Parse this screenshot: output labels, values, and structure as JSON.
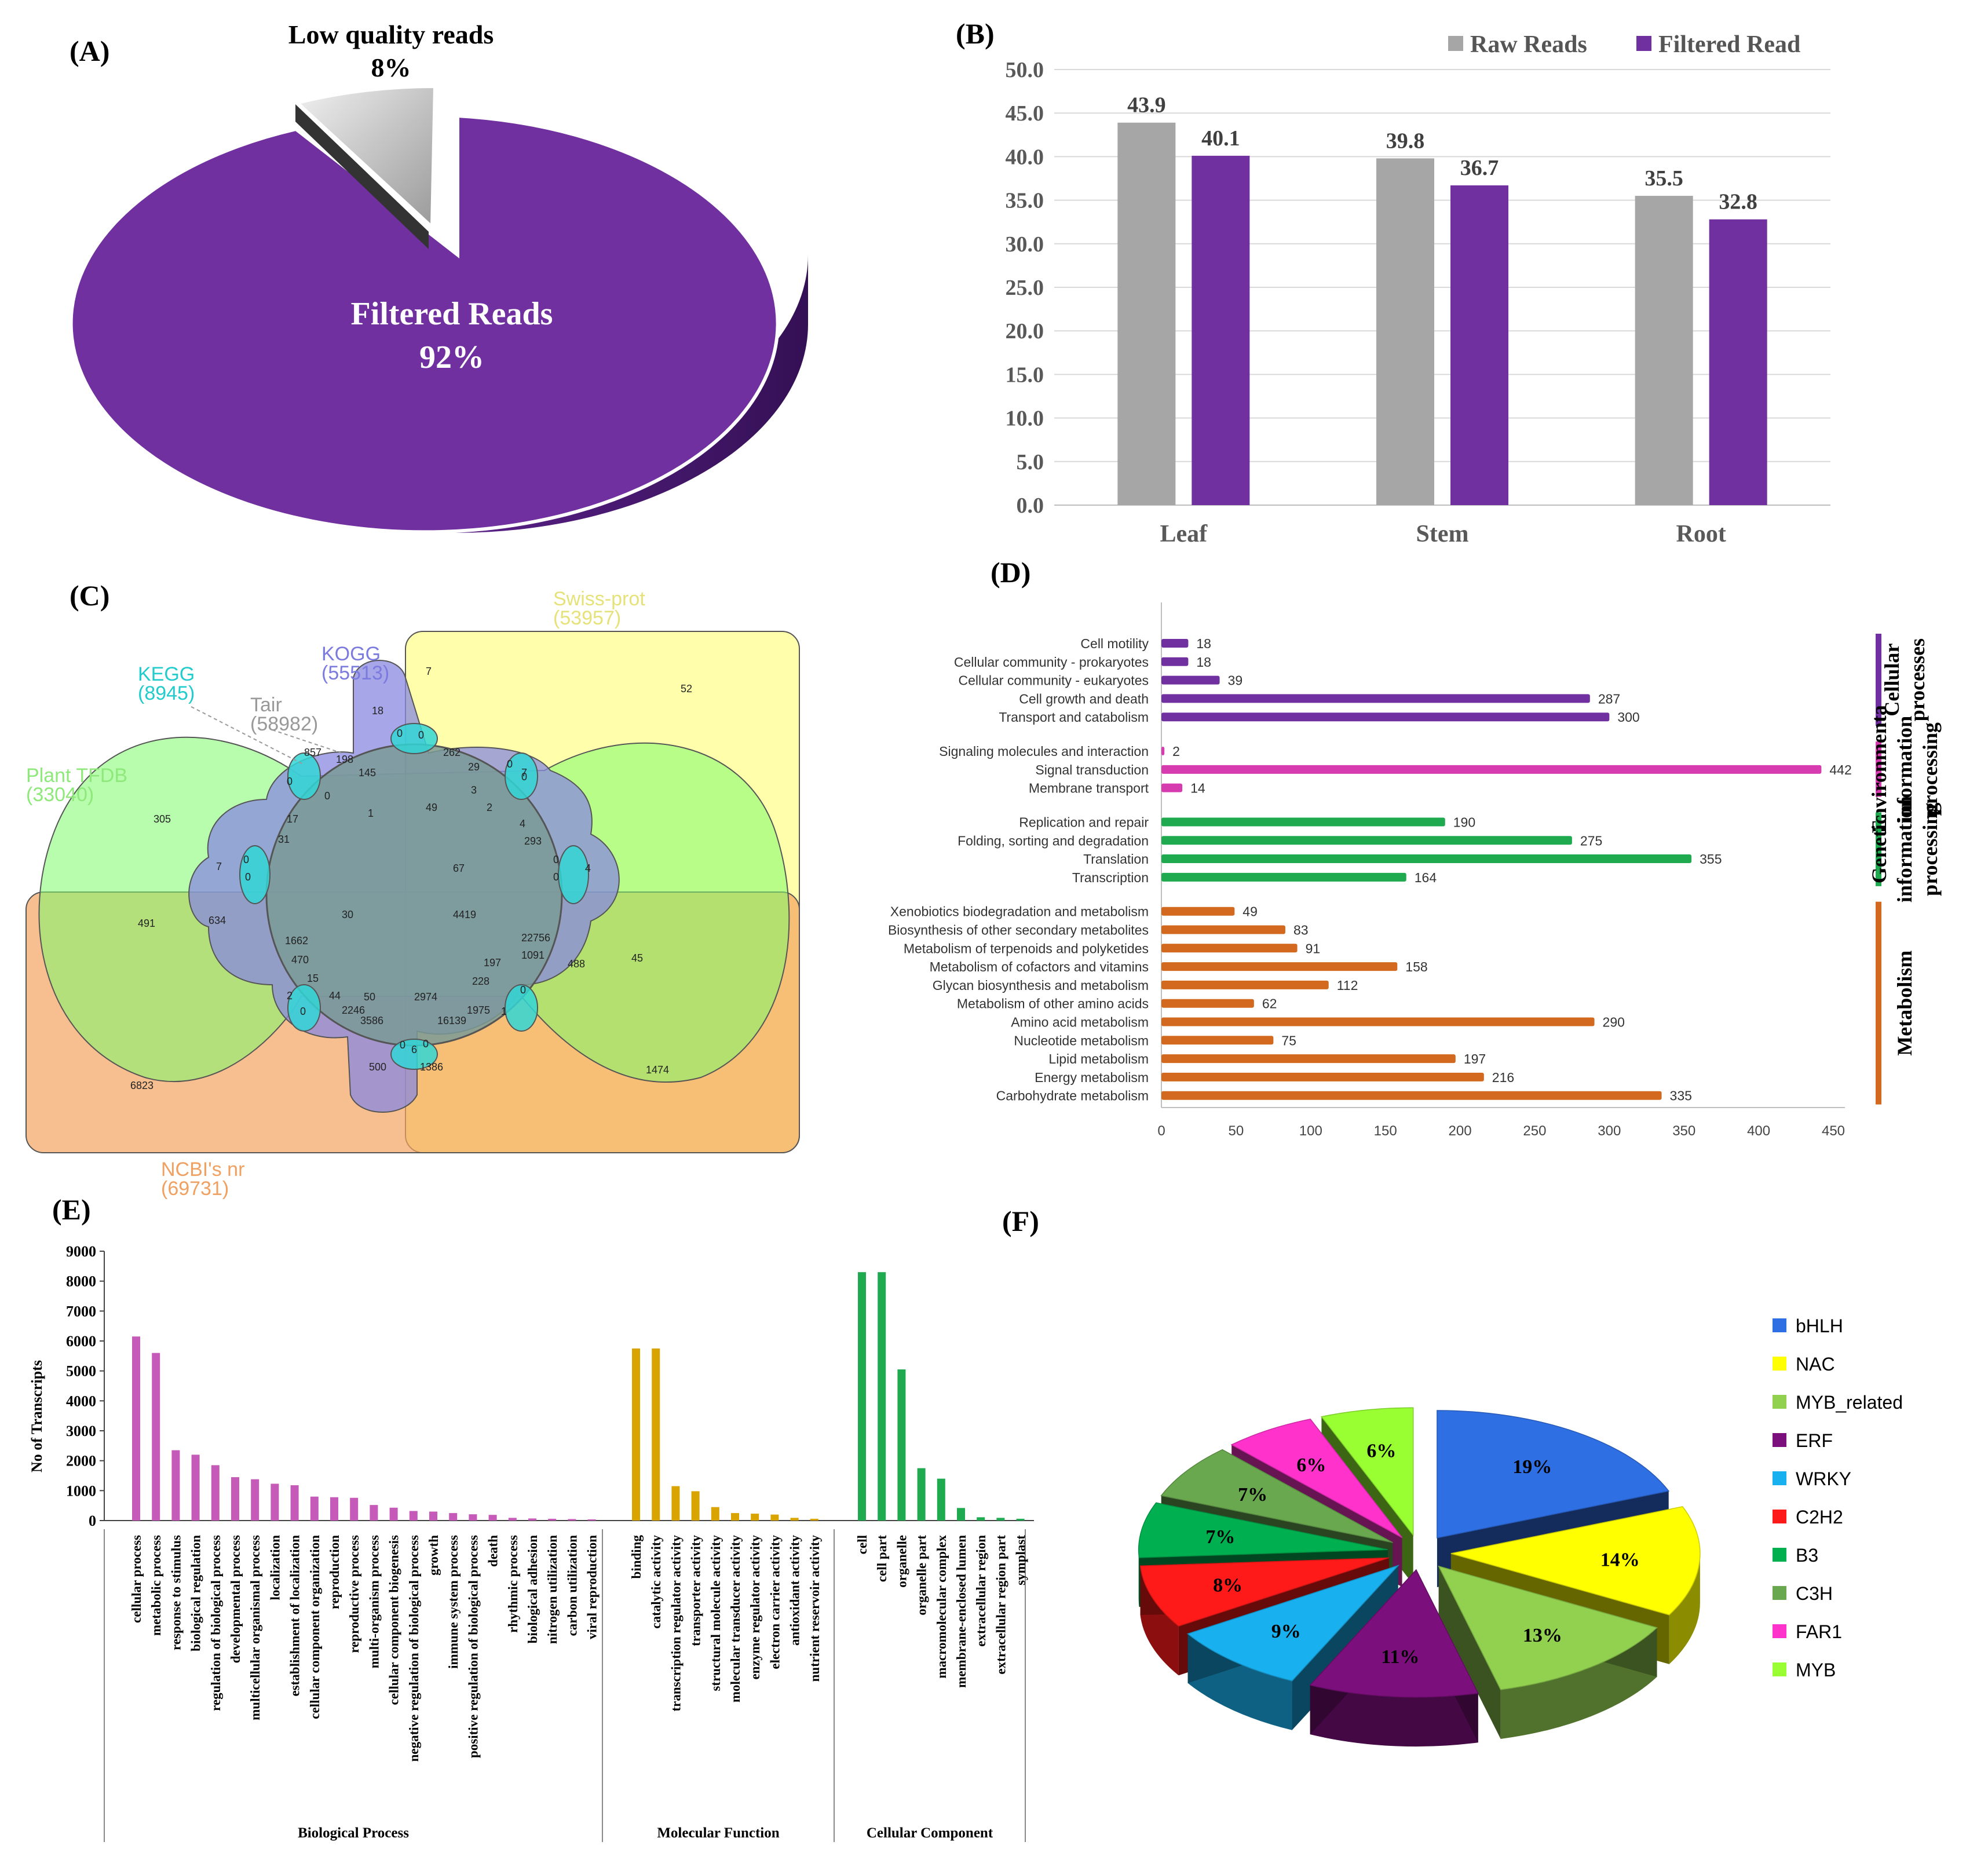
{
  "colors": {
    "purple": "#7030a0",
    "grey": "#a6a6a6",
    "cell": "#7030a0",
    "env": "#d63cb0",
    "gen": "#1faa4f",
    "met": "#d2691e",
    "bp": "#c55ab8",
    "mf": "#d9a400",
    "cc": "#1faa4f"
  },
  "panel_labels": {
    "a": "(A)",
    "b": "(B)",
    "c": "(C)",
    "d": "(D)",
    "e": "(E)",
    "f": "(F)"
  },
  "chart_data": [
    {
      "panel": "A",
      "type": "pie",
      "slices": [
        {
          "name": "Low quality reads",
          "value": 8,
          "label": "8%"
        },
        {
          "name": "Filtered Reads",
          "value": 92,
          "label": "92%"
        }
      ]
    },
    {
      "panel": "B",
      "type": "bar",
      "categories": [
        "Leaf",
        "Stem",
        "Root"
      ],
      "series": [
        {
          "name": "Raw Reads",
          "values": [
            43.9,
            39.8,
            35.5
          ],
          "labels": [
            "43.9",
            "39.8",
            "35.5"
          ]
        },
        {
          "name": "Filtered Read",
          "values": [
            40.1,
            36.7,
            32.8
          ],
          "labels": [
            "40.1",
            "36.7",
            "32.8"
          ]
        }
      ],
      "ylim": [
        0,
        50
      ],
      "yticks": [
        "0.0",
        "5.0",
        "10.0",
        "15.0",
        "20.0",
        "25.0",
        "30.0",
        "35.0",
        "40.0",
        "45.0",
        "50.0"
      ]
    },
    {
      "panel": "C",
      "type": "diagram",
      "sets": [
        {
          "name": "Swiss-prot",
          "count": "(53957)"
        },
        {
          "name": "KOGG",
          "count": "(55513)"
        },
        {
          "name": "KEGG",
          "count": "(8945)"
        },
        {
          "name": "Tair",
          "count": "(58982)"
        },
        {
          "name": "Plant TFDB",
          "count": "(33040)"
        },
        {
          "name": "NCBI's nr",
          "count": "(69731)"
        }
      ],
      "region_values": [
        "52",
        "7",
        "18",
        "0",
        "0",
        "7",
        "262",
        "29",
        "0",
        "0",
        "857",
        "198",
        "145",
        "0",
        "0",
        "1",
        "49",
        "3",
        "2",
        "305",
        "17",
        "31",
        "4",
        "293",
        "7",
        "0",
        "0",
        "67",
        "4",
        "0",
        "0",
        "634",
        "30",
        "4419",
        "22756",
        "1091",
        "488",
        "491",
        "1662",
        "470",
        "197",
        "228",
        "45",
        "15",
        "44",
        "50",
        "2974",
        "0",
        "1975",
        "1",
        "2",
        "0",
        "2246",
        "3586",
        "16139",
        "0",
        "6",
        "0",
        "6823",
        "500",
        "1386",
        "1474"
      ]
    },
    {
      "panel": "D",
      "type": "bar",
      "orientation": "horizontal",
      "groups": [
        {
          "name": "Cellular processes",
          "items": [
            {
              "label": "Cell motility",
              "value": 18
            },
            {
              "label": "Cellular community - prokaryotes",
              "value": 18
            },
            {
              "label": "Cellular community - eukaryotes",
              "value": 39
            },
            {
              "label": "Cell growth and death",
              "value": 287
            },
            {
              "label": "Transport and catabolism",
              "value": 300
            }
          ]
        },
        {
          "name": "Environmenta information processing",
          "items": [
            {
              "label": "Signaling molecules and interaction",
              "value": 2
            },
            {
              "label": "Signal transduction",
              "value": 442
            },
            {
              "label": "Membrane transport",
              "value": 14
            }
          ]
        },
        {
          "name": "Genetic information processing",
          "items": [
            {
              "label": "Replication and repair",
              "value": 190
            },
            {
              "label": "Folding, sorting and degradation",
              "value": 275
            },
            {
              "label": "Translation",
              "value": 355
            },
            {
              "label": "Transcription",
              "value": 164
            }
          ]
        },
        {
          "name": "Metabolism",
          "items": [
            {
              "label": "Xenobiotics biodegradation and metabolism",
              "value": 49
            },
            {
              "label": "Biosynthesis of other secondary metabolites",
              "value": 83
            },
            {
              "label": "Metabolism of terpenoids and polyketides",
              "value": 91
            },
            {
              "label": "Metabolism of cofactors and vitamins",
              "value": 158
            },
            {
              "label": "Glycan biosynthesis and metabolism",
              "value": 112
            },
            {
              "label": "Metabolism of other amino acids",
              "value": 62
            },
            {
              "label": "Amino acid metabolism",
              "value": 290
            },
            {
              "label": "Nucleotide metabolism",
              "value": 75
            },
            {
              "label": "Lipid metabolism",
              "value": 197
            },
            {
              "label": "Energy metabolism",
              "value": 216
            },
            {
              "label": "Carbohydrate metabolism",
              "value": 335
            }
          ]
        }
      ],
      "group_labels": [
        [
          "Cellular",
          "processes"
        ],
        [
          "Environmenta",
          "information",
          "processing"
        ],
        [
          "Genetic",
          "information",
          "processing"
        ],
        [
          "Metabolism"
        ]
      ],
      "xlim": [
        0,
        450
      ],
      "xticks": [
        "0",
        "50",
        "100",
        "150",
        "200",
        "250",
        "300",
        "350",
        "400",
        "450"
      ]
    },
    {
      "panel": "E",
      "type": "bar",
      "ylabel": "No of Transcripts",
      "ylim": [
        0,
        9000
      ],
      "yticks": [
        "0",
        "1000",
        "2000",
        "3000",
        "4000",
        "5000",
        "6000",
        "7000",
        "8000",
        "9000"
      ],
      "groups": [
        {
          "name": "Biological Process",
          "items": [
            {
              "label": "cellular process",
              "value": 6150
            },
            {
              "label": "metabolic process",
              "value": 5600
            },
            {
              "label": "response to stimulus",
              "value": 2350
            },
            {
              "label": "biological regulation",
              "value": 2200
            },
            {
              "label": "regulation of biological process",
              "value": 1850
            },
            {
              "label": "developmental process",
              "value": 1450
            },
            {
              "label": "multicellular organismal process",
              "value": 1380
            },
            {
              "label": "localization",
              "value": 1230
            },
            {
              "label": "establishment of localization",
              "value": 1180
            },
            {
              "label": "cellular component organization",
              "value": 800
            },
            {
              "label": "reproduction",
              "value": 780
            },
            {
              "label": "reproductive process",
              "value": 760
            },
            {
              "label": "multi-organism process",
              "value": 520
            },
            {
              "label": "cellular component biogenesis",
              "value": 430
            },
            {
              "label": "negative regulation of biological process",
              "value": 320
            },
            {
              "label": "growth",
              "value": 300
            },
            {
              "label": "immune system process",
              "value": 250
            },
            {
              "label": "positive regulation of biological process",
              "value": 210
            },
            {
              "label": "death",
              "value": 190
            },
            {
              "label": "rhythmic process",
              "value": 90
            },
            {
              "label": "biological adhesion",
              "value": 70
            },
            {
              "label": "nitrogen utilization",
              "value": 60
            },
            {
              "label": "carbon utilization",
              "value": 50
            },
            {
              "label": "viral reproduction",
              "value": 40
            }
          ]
        },
        {
          "name": "Molecular Function",
          "items": [
            {
              "label": "binding",
              "value": 5750
            },
            {
              "label": "catalytic activity",
              "value": 5750
            },
            {
              "label": "transcription regulator activity",
              "value": 1150
            },
            {
              "label": "transporter activity",
              "value": 980
            },
            {
              "label": "structural molecule activity",
              "value": 450
            },
            {
              "label": "molecular transducer activity",
              "value": 250
            },
            {
              "label": "enzyme regulator activity",
              "value": 230
            },
            {
              "label": "electron carrier activity",
              "value": 200
            },
            {
              "label": "antioxidant activity",
              "value": 90
            },
            {
              "label": "nutrient reservoir activity",
              "value": 60
            }
          ]
        },
        {
          "name": "Cellular Component",
          "items": [
            {
              "label": "cell",
              "value": 8300
            },
            {
              "label": "cell part",
              "value": 8300
            },
            {
              "label": "organelle",
              "value": 5050
            },
            {
              "label": "organelle part",
              "value": 1750
            },
            {
              "label": "macromolecular complex",
              "value": 1400
            },
            {
              "label": "membrane-enclosed lumen",
              "value": 420
            },
            {
              "label": "extracellular region",
              "value": 110
            },
            {
              "label": "extracellular region part",
              "value": 90
            },
            {
              "label": "symplast",
              "value": 60
            }
          ]
        }
      ]
    },
    {
      "panel": "F",
      "type": "pie",
      "slices": [
        {
          "name": "bHLH",
          "value": 19,
          "label": "19%",
          "color": "#2f6fe4"
        },
        {
          "name": "NAC",
          "value": 14,
          "label": "14%",
          "color": "#ffff00"
        },
        {
          "name": "MYB_related",
          "value": 13,
          "label": "13%",
          "color": "#92d050"
        },
        {
          "name": "ERF",
          "value": 11,
          "label": "11%",
          "color": "#7b0f7b"
        },
        {
          "name": "WRKY",
          "value": 9,
          "label": "9%",
          "color": "#19b0ef"
        },
        {
          "name": "C2H2",
          "value": 8,
          "label": "8%",
          "color": "#ff1a1a"
        },
        {
          "name": "B3",
          "value": 7,
          "label": "7%",
          "color": "#00b050"
        },
        {
          "name": "C3H",
          "value": 7,
          "label": "7%",
          "color": "#6aa84f"
        },
        {
          "name": "FAR1",
          "value": 6,
          "label": "6%",
          "color": "#ff33cc"
        },
        {
          "name": "MYB",
          "value": 6,
          "label": "6%",
          "color": "#99ff33"
        }
      ]
    }
  ]
}
